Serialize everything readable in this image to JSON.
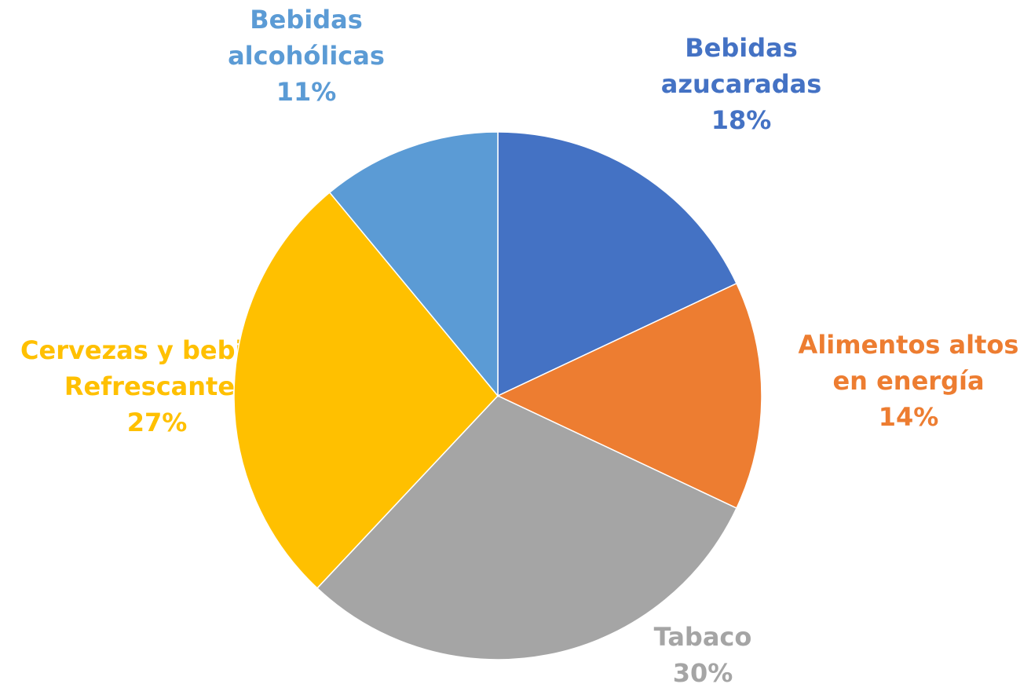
{
  "chart_data": {
    "type": "pie",
    "categories": [
      "Bebidas azucaradas",
      "Alimentos altos en energía",
      "Tabaco",
      "Cervezas y bebidas Refrescantes",
      "Bebidas alcohólicas"
    ],
    "values": [
      18,
      14,
      30,
      27,
      11
    ],
    "value_labels": [
      "18%",
      "14%",
      "30%",
      "27%",
      "11%"
    ],
    "colors": [
      "#4472c4",
      "#ed7d31",
      "#a5a5a5",
      "#ffc000",
      "#5b9bd5"
    ]
  }
}
